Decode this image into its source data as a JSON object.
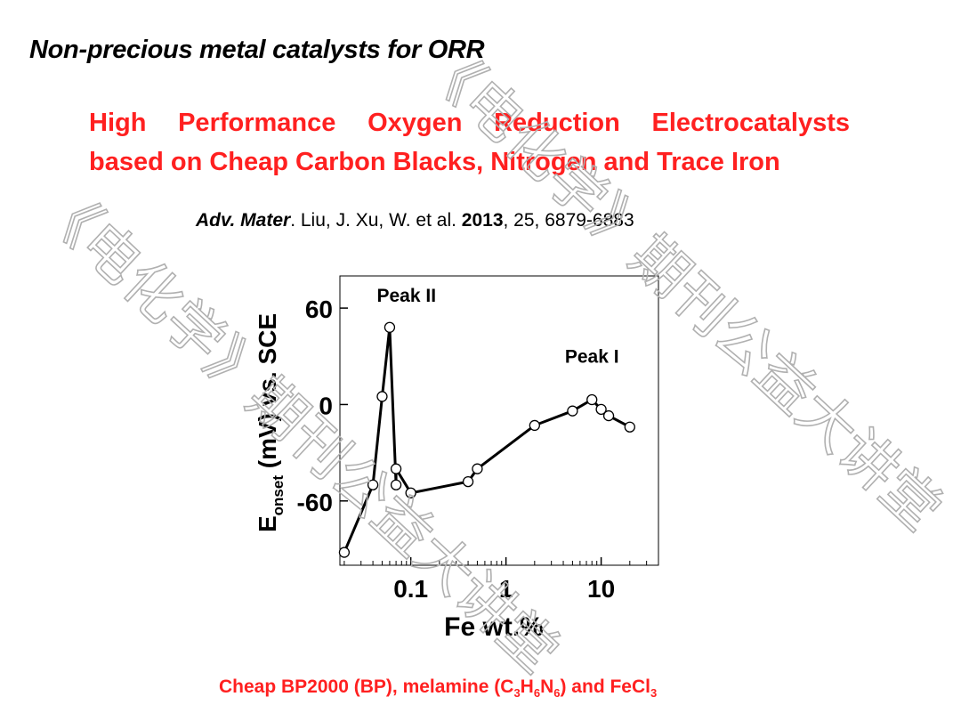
{
  "slide": {
    "title": "Non-precious metal catalysts for ORR",
    "paper_title_line1_words": [
      "High",
      "Performance",
      "Oxygen",
      "Reduction",
      "Electrocatalysts"
    ],
    "paper_title_line2": "based on Cheap Carbon Blacks, Nitrogen and Trace Iron",
    "citation": {
      "journal": "Adv. Mater",
      "authors": ". Liu, J. Xu, W. et al. ",
      "year": "2013",
      "rest": ", 25, 6879-6883"
    },
    "footer": {
      "prefix": "Cheap  BP2000 (BP), melamine (C",
      "sub1": "3",
      "h": "H",
      "sub2": "6",
      "n": "N",
      "sub3": "6",
      "mid": ") and FeCl",
      "sub4": "3"
    },
    "watermark": "《电化学》期刊公益大讲堂"
  },
  "chart_data": {
    "type": "line",
    "xlabel": "Fe wt.%",
    "ylabel_main": "E",
    "ylabel_sub": "onset",
    "ylabel_rest": " (mV) vs. SCE",
    "xscale": "log",
    "xlim": [
      0.018,
      40
    ],
    "ylim": [
      -100,
      80
    ],
    "xticks": [
      0.1,
      1,
      10
    ],
    "xtick_labels": [
      "0.1",
      "1",
      "10"
    ],
    "yticks": [
      60,
      0,
      -60
    ],
    "ytick_labels": [
      "60",
      "0",
      "-60"
    ],
    "x": [
      0.02,
      0.04,
      0.05,
      0.06,
      0.07,
      0.07,
      0.1,
      0.4,
      0.5,
      2,
      5,
      8,
      10,
      12,
      20
    ],
    "y": [
      -92,
      -50,
      5,
      48,
      -50,
      -40,
      -55,
      -48,
      -40,
      -13,
      -4,
      3,
      -3,
      -7,
      -14
    ],
    "annotations": [
      {
        "text": "Peak II",
        "x": 0.09,
        "y": 64
      },
      {
        "text": "Peak I",
        "x": 8,
        "y": 26
      }
    ],
    "grid": false
  }
}
